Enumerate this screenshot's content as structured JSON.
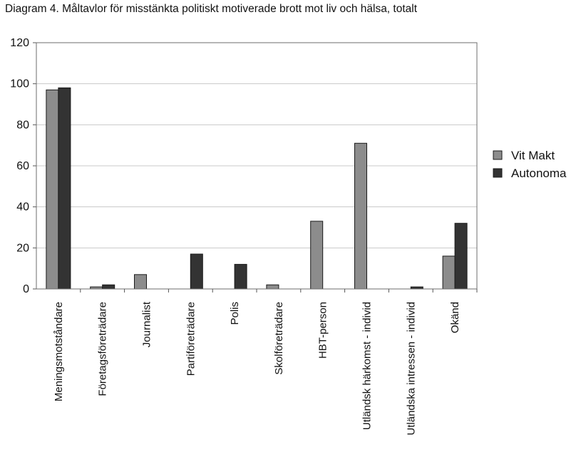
{
  "chart_data": {
    "type": "bar",
    "title": "Diagram 4. Måltavlor för misstänkta politiskt motiverade brott mot liv och hälsa, totalt",
    "xlabel": "",
    "ylabel": "",
    "ylim": [
      0,
      120
    ],
    "yticks": [
      0,
      20,
      40,
      60,
      80,
      100,
      120
    ],
    "grid": true,
    "legend_position": "right",
    "categories": [
      "Meningsmotståndare",
      "Företagsföreträdare",
      "Journalist",
      "Partiföreträdare",
      "Polis",
      "Skolföreträdare",
      "HBT-person",
      "Utländsk härkomst - individ",
      "Utländska intressen - individ",
      "Okänd"
    ],
    "series": [
      {
        "name": "Vit Makt",
        "color": "#8c8c8c",
        "values": [
          97,
          1,
          7,
          0,
          0,
          2,
          33,
          71,
          0,
          16
        ]
      },
      {
        "name": "Autonoma",
        "color": "#333333",
        "values": [
          98,
          2,
          0,
          17,
          12,
          0,
          0,
          0,
          1,
          32
        ]
      }
    ]
  }
}
